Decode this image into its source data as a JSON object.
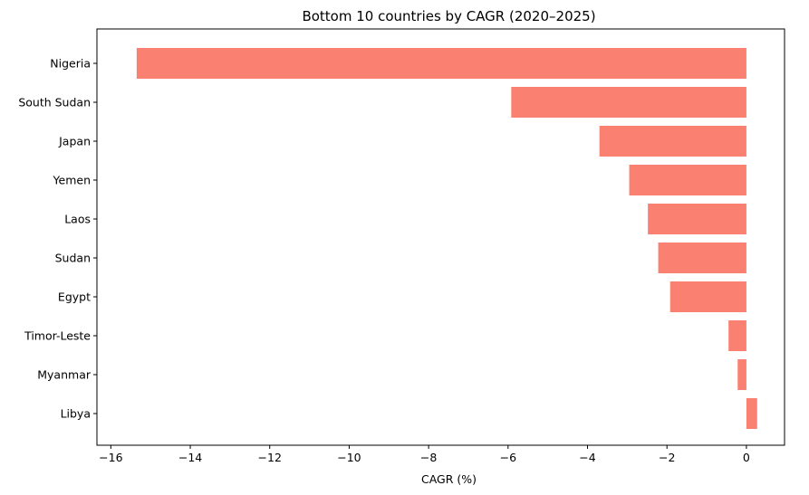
{
  "chart_data": {
    "type": "bar",
    "orientation": "horizontal",
    "title": "Bottom 10 countries by CAGR (2020–2025)",
    "xlabel": "CAGR (%)",
    "ylabel": "",
    "categories": [
      "Nigeria",
      "South Sudan",
      "Japan",
      "Yemen",
      "Laos",
      "Sudan",
      "Egypt",
      "Timor-Leste",
      "Myanmar",
      "Libya"
    ],
    "values": [
      -15.35,
      -5.92,
      -3.7,
      -2.95,
      -2.48,
      -2.22,
      -1.92,
      -0.45,
      -0.22,
      0.27
    ],
    "xlim": [
      -16.35,
      0.96
    ],
    "xticks": [
      -16,
      -14,
      -12,
      -10,
      -8,
      -6,
      -4,
      -2,
      0
    ],
    "xtick_labels": [
      "−16",
      "−14",
      "−12",
      "−10",
      "−8",
      "−6",
      "−4",
      "−2",
      "0"
    ],
    "bar_color": "#fa8072",
    "grid": false,
    "legend": "none"
  }
}
